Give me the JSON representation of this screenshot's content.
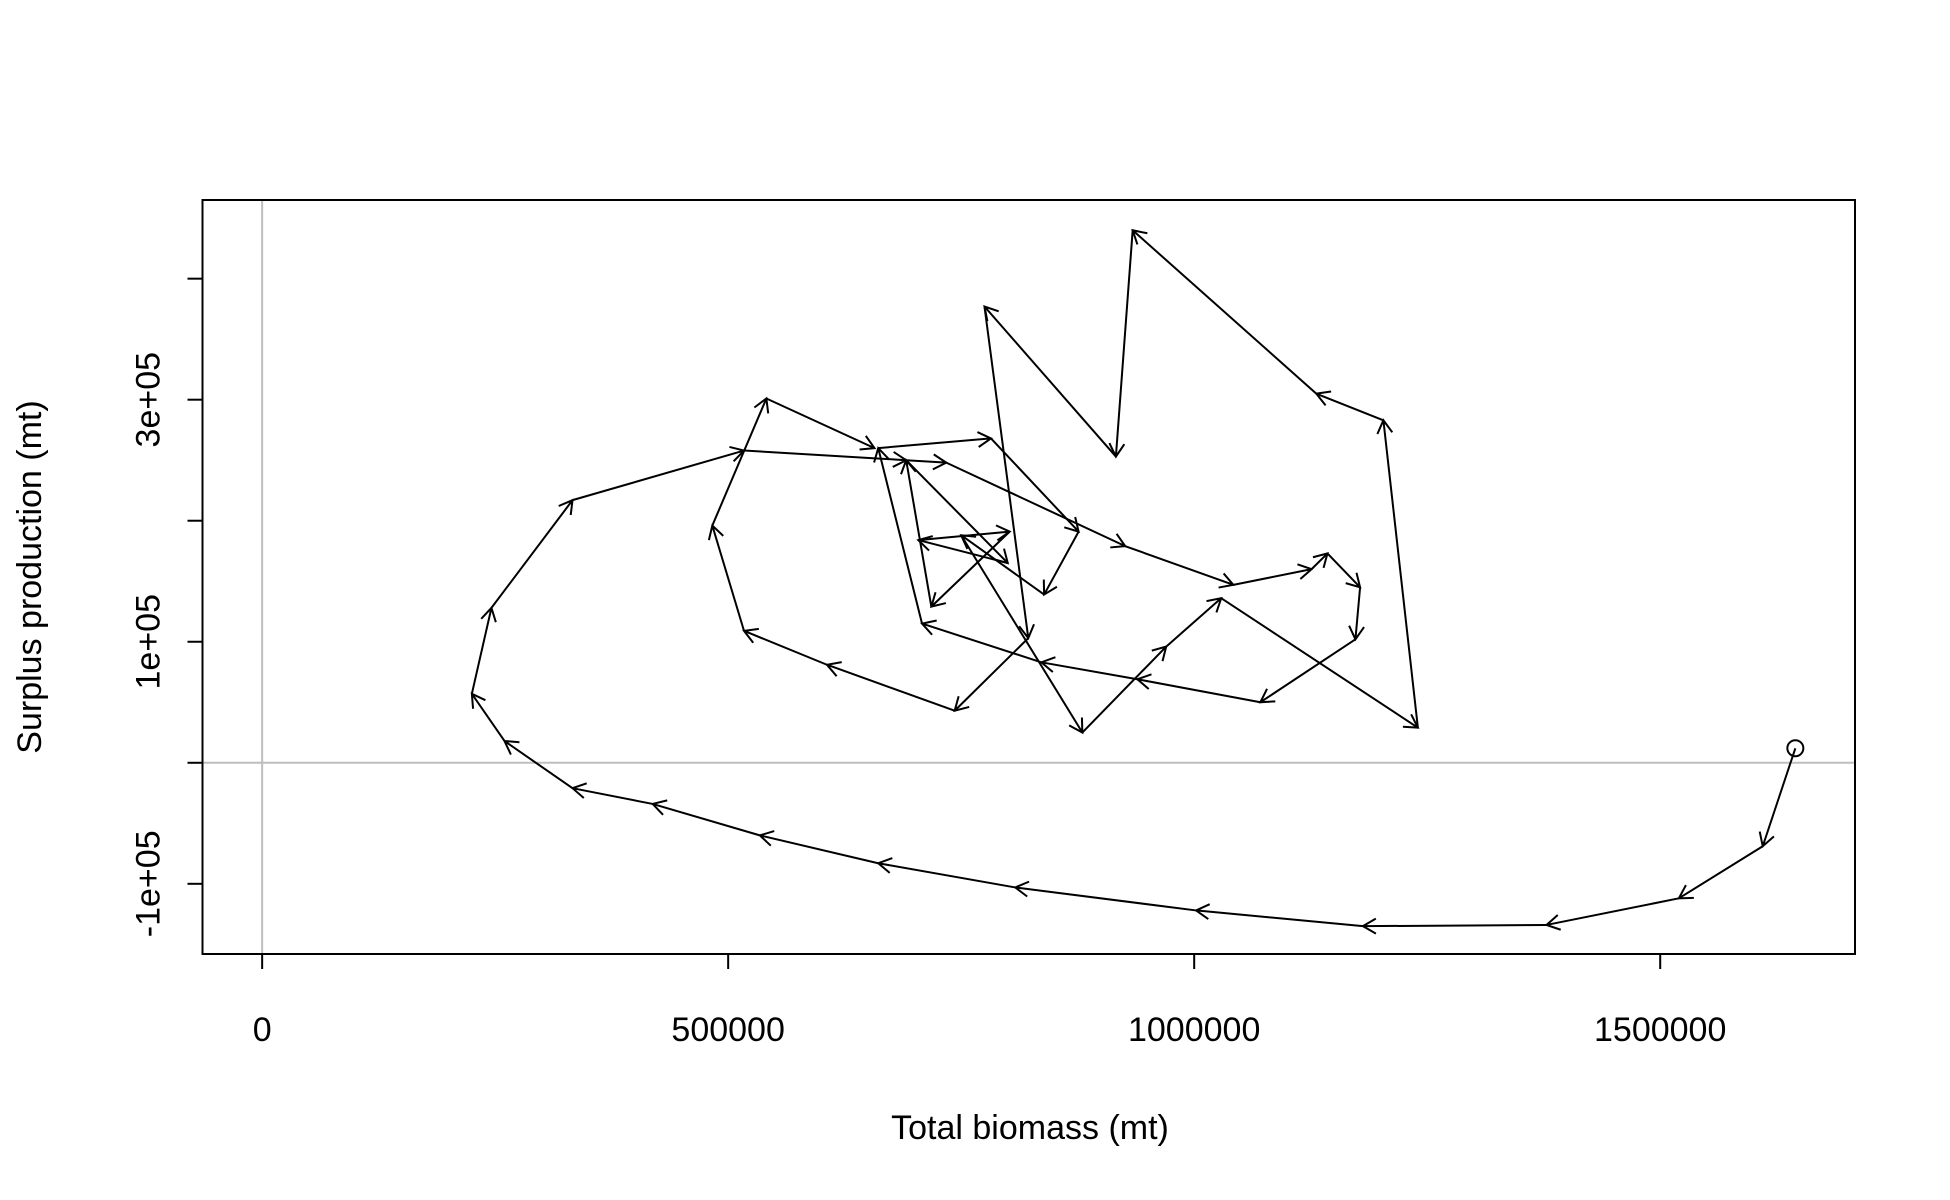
{
  "chart_data": {
    "type": "arrow-path",
    "xlabel": "Total biomass (mt)",
    "ylabel": "Surplus production (mt)",
    "color": "#000000",
    "reference_color": "#bebebe",
    "reference_lines": {
      "x": 0,
      "y": 0
    },
    "xlim": [
      -64000,
      1709000
    ],
    "ylim": [
      -158000,
      465000
    ],
    "xticks": [
      0,
      500000,
      1000000,
      1500000
    ],
    "yticks": [
      {
        "value": -100000,
        "label": "-1e+05"
      },
      {
        "value": 0,
        "label": null
      },
      {
        "value": 100000,
        "label": "1e+05"
      },
      {
        "value": 200000,
        "label": null
      },
      {
        "value": 300000,
        "label": "3e+05"
      },
      {
        "value": 400000,
        "label": null
      }
    ],
    "x": [
      1645000,
      1610000,
      1520000,
      1378000,
      1181000,
      1002000,
      808000,
      661000,
      534000,
      419000,
      333000,
      260000,
      225000,
      246000,
      333000,
      517000,
      691000,
      800000,
      704000,
      802000,
      718000,
      691000,
      734000,
      926000,
      1042000,
      1126000,
      1143000,
      1178000,
      1173000,
      1071000,
      939000,
      836000,
      708000,
      661000,
      782000,
      876000,
      839000,
      750000,
      880000,
      970000,
      1029000,
      1240000,
      1203000,
      1131000,
      934000,
      916000,
      775000,
      822000,
      743000,
      606000,
      517000,
      483000,
      541000,
      657000
    ],
    "values": [
      12000,
      -69000,
      -112000,
      -134000,
      -135000,
      -122000,
      -103000,
      -83000,
      -60000,
      -34000,
      -21000,
      18000,
      57000,
      128000,
      217000,
      258000,
      250000,
      165000,
      184000,
      191000,
      129000,
      250000,
      248000,
      179000,
      147000,
      160000,
      173000,
      145000,
      102000,
      50000,
      69000,
      83000,
      115000,
      260000,
      268000,
      191000,
      139000,
      188000,
      25000,
      96000,
      136000,
      29000,
      283000,
      305000,
      440000,
      253000,
      377000,
      103000,
      43000,
      81000,
      109000,
      196000,
      301000,
      260000
    ]
  }
}
